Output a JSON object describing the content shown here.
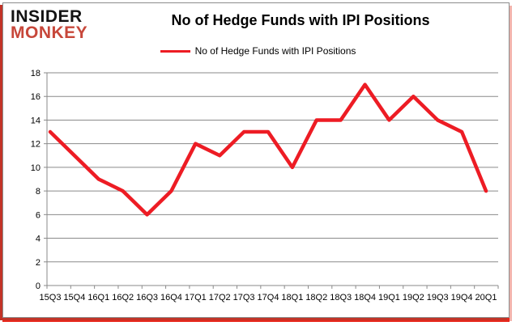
{
  "logo": {
    "line1": "INSIDER",
    "line2": "MONKEY"
  },
  "header": {
    "title": "No of Hedge Funds with IPI Positions"
  },
  "legend": {
    "label": "No of Hedge Funds with IPI Positions"
  },
  "colors": {
    "line": "#ed1c24",
    "grid": "#8a8a8a",
    "axis": "#8a8a8a",
    "text": "#000000",
    "logo_red": "#c7473a"
  },
  "chart_data": {
    "type": "line",
    "title": "No of Hedge Funds with IPI Positions",
    "categories": [
      "15Q3",
      "15Q4",
      "16Q1",
      "16Q2",
      "16Q3",
      "16Q4",
      "17Q1",
      "17Q2",
      "17Q3",
      "17Q4",
      "18Q1",
      "18Q2",
      "18Q3",
      "18Q4",
      "19Q1",
      "19Q2",
      "19Q3",
      "19Q4",
      "20Q1"
    ],
    "series": [
      {
        "name": "No of Hedge Funds with IPI Positions",
        "color": "#ed1c24",
        "values": [
          13,
          11,
          9,
          8,
          6,
          8,
          12,
          11,
          13,
          13,
          10,
          14,
          14,
          17,
          14,
          16,
          14,
          13,
          8
        ]
      }
    ],
    "xlabel": "",
    "ylabel": "",
    "ylim": [
      0,
      18
    ],
    "ytick_step": 2,
    "grid": "horizontal",
    "legend_position": "top"
  }
}
